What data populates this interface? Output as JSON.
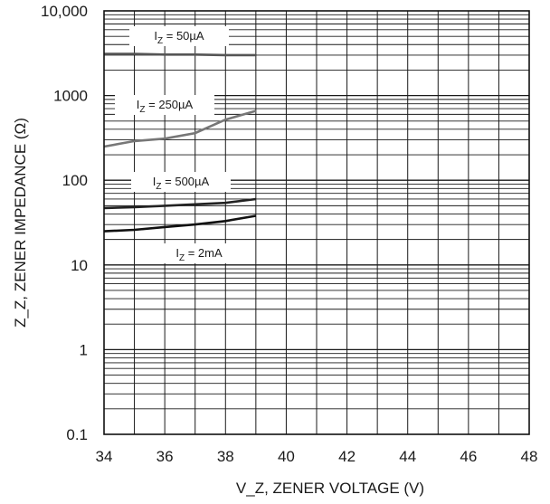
{
  "chart_data": {
    "type": "line",
    "xlabel": "V_Z, ZENER VOLTAGE (V)",
    "ylabel": "Z_Z, ZENER IMPEDANCE (Ω)",
    "xlim": [
      34,
      48
    ],
    "ylim": [
      0.1,
      10000
    ],
    "y_scale": "log",
    "grid": true,
    "x_ticks": [
      "34",
      "36",
      "38",
      "40",
      "42",
      "44",
      "46",
      "48"
    ],
    "y_ticks": [
      "0.1",
      "1",
      "10",
      "100",
      "1000",
      "10,000"
    ],
    "series": [
      {
        "name": "IZ = 50µA",
        "label": {
          "main": "I",
          "sub": "Z",
          "tail": " = 50µA"
        },
        "color": "#555555",
        "points": [
          [
            34,
            3100
          ],
          [
            35,
            3100
          ],
          [
            36,
            3050
          ],
          [
            37,
            3050
          ],
          [
            38,
            3000
          ],
          [
            39,
            3000
          ]
        ]
      },
      {
        "name": "IZ = 250µA",
        "label": {
          "main": "I",
          "sub": "Z",
          "tail": " = 250µA"
        },
        "color": "#777777",
        "points": [
          [
            34,
            250
          ],
          [
            35,
            290
          ],
          [
            36,
            310
          ],
          [
            37,
            360
          ],
          [
            38,
            520
          ],
          [
            39,
            660
          ]
        ]
      },
      {
        "name": "IZ = 500µA",
        "label": {
          "main": "I",
          "sub": "Z",
          "tail": " = 500µA"
        },
        "color": "#222222",
        "points": [
          [
            34,
            47
          ],
          [
            35,
            48
          ],
          [
            36,
            50
          ],
          [
            37,
            52
          ],
          [
            38,
            54
          ],
          [
            39,
            60
          ]
        ]
      },
      {
        "name": "IZ = 2mA",
        "label": {
          "main": "I",
          "sub": "Z",
          "tail": " = 2mA"
        },
        "color": "#111111",
        "points": [
          [
            34,
            25
          ],
          [
            35,
            26
          ],
          [
            36,
            28
          ],
          [
            37,
            30
          ],
          [
            38,
            33
          ],
          [
            39,
            38
          ]
        ]
      }
    ]
  }
}
